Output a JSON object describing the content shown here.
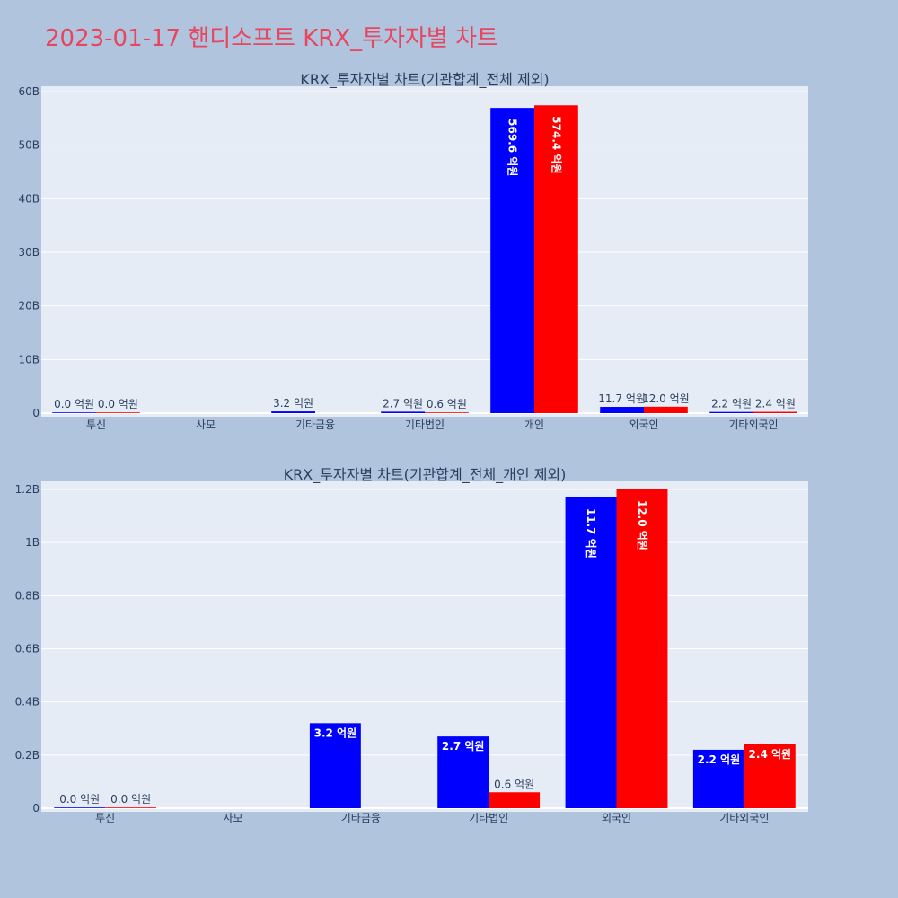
{
  "title": "2023-01-17 핸디소프트 KRX_투자자별 차트",
  "colors": {
    "series1": "#0000ff",
    "series2": "#ff0000",
    "title": "#e8455f"
  },
  "chart_data": [
    {
      "type": "bar",
      "title": "KRX_투자자별 차트(기관합계_전체 제외)",
      "categories": [
        "투신",
        "사모",
        "기타금융",
        "기타법인",
        "개인",
        "외국인",
        "기타외국인"
      ],
      "series": [
        {
          "values": [
            0.0,
            null,
            0.32,
            0.27,
            56.96,
            1.17,
            0.22
          ],
          "labels": [
            "0.0 억원",
            "",
            "3.2 억원",
            "2.7 억원",
            "569.6 억원",
            "11.7 억원",
            "2.2 억원"
          ]
        },
        {
          "values": [
            0.0,
            null,
            null,
            0.06,
            57.44,
            1.2,
            0.24
          ],
          "labels": [
            "0.0 억원",
            "",
            "",
            "0.6 억원",
            "574.4 억원",
            "12.0 억원",
            "2.4 억원"
          ]
        }
      ],
      "yticks": [
        0,
        10,
        20,
        30,
        40,
        50,
        60
      ],
      "ytick_labels": [
        "0",
        "10B",
        "20B",
        "30B",
        "40B",
        "50B",
        "60B"
      ],
      "ylim": [
        0,
        60.5
      ],
      "grid": true
    },
    {
      "type": "bar",
      "title": "KRX_투자자별 차트(기관합계_전체_개인 제외)",
      "categories": [
        "투신",
        "사모",
        "기타금융",
        "기타법인",
        "외국인",
        "기타외국인"
      ],
      "series": [
        {
          "values": [
            0.0,
            null,
            0.32,
            0.27,
            1.17,
            0.22
          ],
          "labels": [
            "0.0 억원",
            "",
            "3.2 억원",
            "2.7 억원",
            "11.7 억원",
            "2.2 억원"
          ]
        },
        {
          "values": [
            0.0,
            null,
            null,
            0.06,
            1.2,
            0.24
          ],
          "labels": [
            "0.0 억원",
            "",
            "",
            "0.6 억원",
            "12.0 억원",
            "2.4 억원"
          ]
        }
      ],
      "yticks": [
        0,
        0.2,
        0.4,
        0.6,
        0.8,
        1.0,
        1.2
      ],
      "ytick_labels": [
        "0",
        "0.2B",
        "0.4B",
        "0.6B",
        "0.8B",
        "1B",
        "1.2B"
      ],
      "ylim": [
        0,
        1.26
      ],
      "grid": true
    }
  ]
}
